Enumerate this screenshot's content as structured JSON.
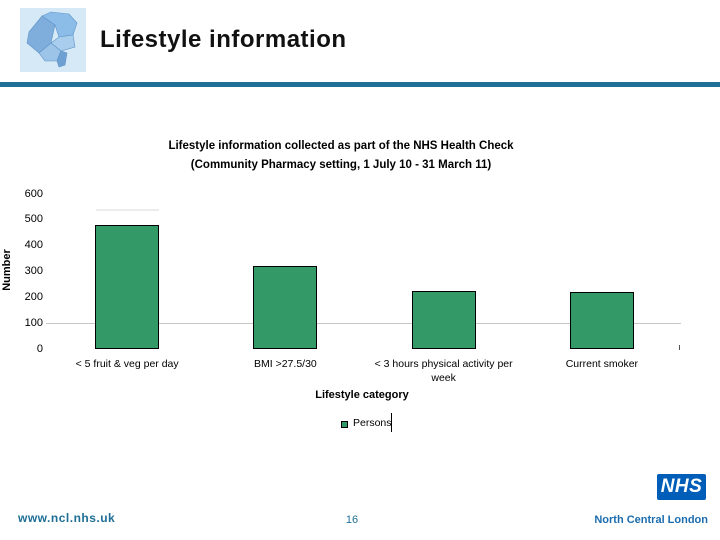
{
  "header": {
    "title": "Lifestyle information",
    "logo": "north-central-london-boroughs-map"
  },
  "chart": {
    "title_line1": "Lifestyle information collected as part of the NHS Health Check",
    "title_line2": "(Community Pharmacy setting, 1 July 10 - 31 March 11)",
    "ylabel": "Number",
    "xlabel": "Lifestyle category",
    "legend_label": "Persons"
  },
  "chart_data": {
    "type": "bar",
    "title": "Lifestyle information collected as part of the NHS Health Check (Community Pharmacy setting, 1 July 10 - 31 March 11)",
    "categories": [
      "< 5 fruit & veg per day",
      "BMI >27.5/30",
      "< 3 hours physical activity per week",
      "Current smoker"
    ],
    "series": [
      {
        "name": "Persons",
        "values": [
          480,
          320,
          225,
          220
        ]
      }
    ],
    "xlabel": "Lifestyle category",
    "ylabel": "Number",
    "ylim": [
      0,
      600
    ],
    "y_ticks": [
      0,
      100,
      200,
      300,
      400,
      500,
      600
    ],
    "gridlines": [
      100
    ],
    "grid": "single horizontal gridline at 100",
    "bar_color": "#339966",
    "bar_border_color": "#000000",
    "legend_position": "bottom"
  },
  "footer": {
    "website": "www.ncl.nhs.uk",
    "page_number": "16",
    "nhs_logo_text": "NHS",
    "org_name": "North Central London"
  },
  "colors": {
    "accent_teal": "#1E6E96",
    "nhs_blue": "#005EB8",
    "bar_green": "#339966",
    "gridline_gray": "#C6C6C6"
  }
}
